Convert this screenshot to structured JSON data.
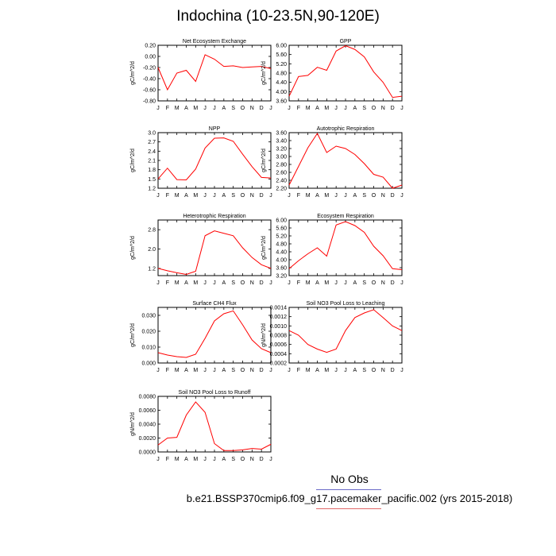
{
  "page": {
    "title": "Indochina (10-23.5N,90-120E)",
    "legend_label": "No Obs",
    "case_label": "b.e21.BSSP370cmip6.f09_g17.pacemaker_pacific.002 (yrs 2015-2018)"
  },
  "month_labels": [
    "J",
    "F",
    "M",
    "A",
    "M",
    "J",
    "J",
    "A",
    "S",
    "O",
    "N",
    "D",
    "J"
  ],
  "colors": {
    "series": "#ff0000",
    "legend_line_1": "#6a6ac8",
    "legend_line_2": "#e06868"
  },
  "chart_data": [
    {
      "type": "line",
      "title": "Net Ecosystem Exchange",
      "ylabel": "gC/m^2/d",
      "ylim": [
        -0.8,
        0.2
      ],
      "yticks": [
        -0.8,
        -0.6,
        -0.4,
        -0.2,
        0.0,
        0.2
      ],
      "ytick_labels": [
        "-0.80",
        "-0.60",
        "-0.40",
        "-0.20",
        "0.00",
        "0.20"
      ],
      "values": [
        -0.2,
        -0.6,
        -0.3,
        -0.25,
        -0.45,
        0.03,
        -0.05,
        -0.18,
        -0.17,
        -0.2,
        -0.19,
        -0.18,
        -0.22
      ]
    },
    {
      "type": "line",
      "title": "GPP",
      "ylabel": "gC/m^2/d",
      "ylim": [
        3.6,
        6.0
      ],
      "yticks": [
        3.6,
        4.0,
        4.4,
        4.8,
        5.2,
        5.6,
        6.0
      ],
      "ytick_labels": [
        "3.60",
        "4.00",
        "4.40",
        "4.80",
        "5.20",
        "5.60",
        "6.00"
      ],
      "values": [
        3.8,
        4.65,
        4.7,
        5.05,
        4.92,
        5.75,
        5.98,
        5.82,
        5.5,
        4.85,
        4.4,
        3.75,
        3.8
      ]
    },
    {
      "type": "line",
      "title": "NPP",
      "ylabel": "gC/m^2/d",
      "ylim": [
        1.2,
        3.0
      ],
      "yticks": [
        1.2,
        1.5,
        1.8,
        2.1,
        2.4,
        2.7,
        3.0
      ],
      "ytick_labels": [
        "1.2",
        "1.5",
        "1.8",
        "2.1",
        "2.4",
        "2.7",
        "3.0"
      ],
      "values": [
        1.5,
        1.85,
        1.48,
        1.47,
        1.82,
        2.5,
        2.82,
        2.83,
        2.72,
        2.3,
        1.9,
        1.55,
        1.53
      ]
    },
    {
      "type": "line",
      "title": "Autotrophic Respiration",
      "ylabel": "gC/m^2/d",
      "ylim": [
        2.2,
        3.6
      ],
      "yticks": [
        2.2,
        2.4,
        2.6,
        2.8,
        3.0,
        3.2,
        3.4,
        3.6
      ],
      "ytick_labels": [
        "2.20",
        "2.40",
        "2.60",
        "2.80",
        "3.00",
        "3.20",
        "3.40",
        "3.60"
      ],
      "values": [
        2.28,
        2.75,
        3.22,
        3.58,
        3.1,
        3.26,
        3.2,
        3.05,
        2.82,
        2.55,
        2.48,
        2.2,
        2.28
      ]
    },
    {
      "type": "line",
      "title": "Heterotrophic Respiration",
      "ylabel": "gC/m^2/d",
      "ylim": [
        0.9,
        3.2
      ],
      "yticks": [
        1.2,
        2.0,
        2.8
      ],
      "ytick_labels": [
        "1.2",
        "2.0",
        "2.8"
      ],
      "values": [
        1.2,
        1.1,
        1.02,
        0.95,
        1.08,
        2.55,
        2.75,
        2.65,
        2.55,
        2.05,
        1.65,
        1.35,
        1.2
      ]
    },
    {
      "type": "line",
      "title": "Ecosystem Respiration",
      "ylabel": "gC/m^2/d",
      "ylim": [
        3.2,
        6.0
      ],
      "yticks": [
        3.2,
        3.6,
        4.0,
        4.4,
        4.8,
        5.2,
        5.6,
        6.0
      ],
      "ytick_labels": [
        "3.20",
        "3.60",
        "4.00",
        "4.40",
        "4.80",
        "5.20",
        "5.60",
        "6.00"
      ],
      "values": [
        3.55,
        3.95,
        4.3,
        4.6,
        4.18,
        5.75,
        5.92,
        5.72,
        5.38,
        4.68,
        4.2,
        3.55,
        3.5
      ]
    },
    {
      "type": "line",
      "title": "Surface CH4 Flux",
      "ylabel": "gC/m^2/d",
      "ylim": [
        0.0,
        0.035
      ],
      "yticks": [
        0.0,
        0.01,
        0.02,
        0.03
      ],
      "ytick_labels": [
        "0.000",
        "0.010",
        "0.020",
        "0.030"
      ],
      "values": [
        0.0065,
        0.005,
        0.004,
        0.0035,
        0.0055,
        0.0155,
        0.0265,
        0.031,
        0.0328,
        0.024,
        0.0145,
        0.009,
        0.0065
      ]
    },
    {
      "type": "line",
      "title": "Soil NO3 Pool Loss to Leaching",
      "ylabel": "gN/m^2/d",
      "ylim": [
        0.0002,
        0.0014
      ],
      "yticks": [
        0.0002,
        0.0004,
        0.0006,
        0.0008,
        0.001,
        0.0012,
        0.0014
      ],
      "ytick_labels": [
        "0.0002",
        "0.0004",
        "0.0006",
        "0.0008",
        "0.0010",
        "0.0012",
        "0.0014"
      ],
      "values": [
        0.0009,
        0.0008,
        0.0006,
        0.0005,
        0.00043,
        0.0005,
        0.0009,
        0.00118,
        0.00128,
        0.00135,
        0.00118,
        0.001,
        0.0009
      ]
    },
    {
      "type": "line",
      "title": "Soil NO3 Pool Loss to Runoff",
      "ylabel": "gN/m^2/d",
      "ylim": [
        0.0,
        0.008
      ],
      "yticks": [
        0.0,
        0.002,
        0.004,
        0.006,
        0.008
      ],
      "ytick_labels": [
        "0.0000",
        "0.0020",
        "0.0040",
        "0.0060",
        "0.0080"
      ],
      "values": [
        0.001,
        0.002,
        0.0021,
        0.0053,
        0.0072,
        0.0057,
        0.0012,
        0.0002,
        0.0002,
        0.0003,
        0.0005,
        0.0004,
        0.0011
      ]
    }
  ]
}
